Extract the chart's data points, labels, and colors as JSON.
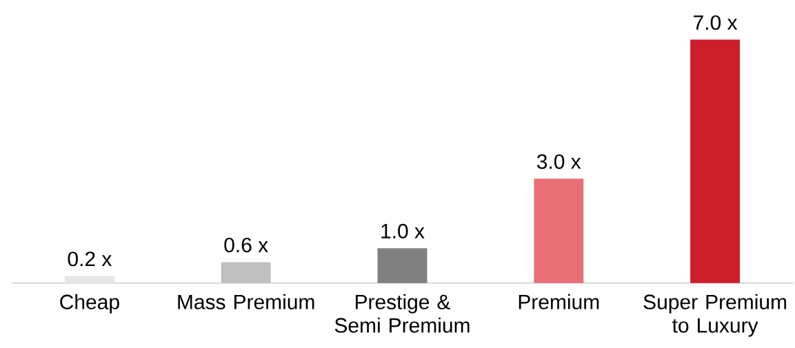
{
  "chart_data": {
    "type": "bar",
    "categories": [
      "Cheap",
      "Mass Premium",
      "Prestige & Semi Premium",
      "Premium",
      "Super Premium to Luxury"
    ],
    "values": [
      0.2,
      0.6,
      1.0,
      3.0,
      7.0
    ],
    "colors": [
      "#e6e6e6",
      "#bfbfbf",
      "#808080",
      "#e96f76",
      "#cc1f2a"
    ],
    "value_labels": [
      "0.2 x",
      "0.6 x",
      "1.0 x",
      "3.0 x",
      "7.0 x"
    ]
  }
}
